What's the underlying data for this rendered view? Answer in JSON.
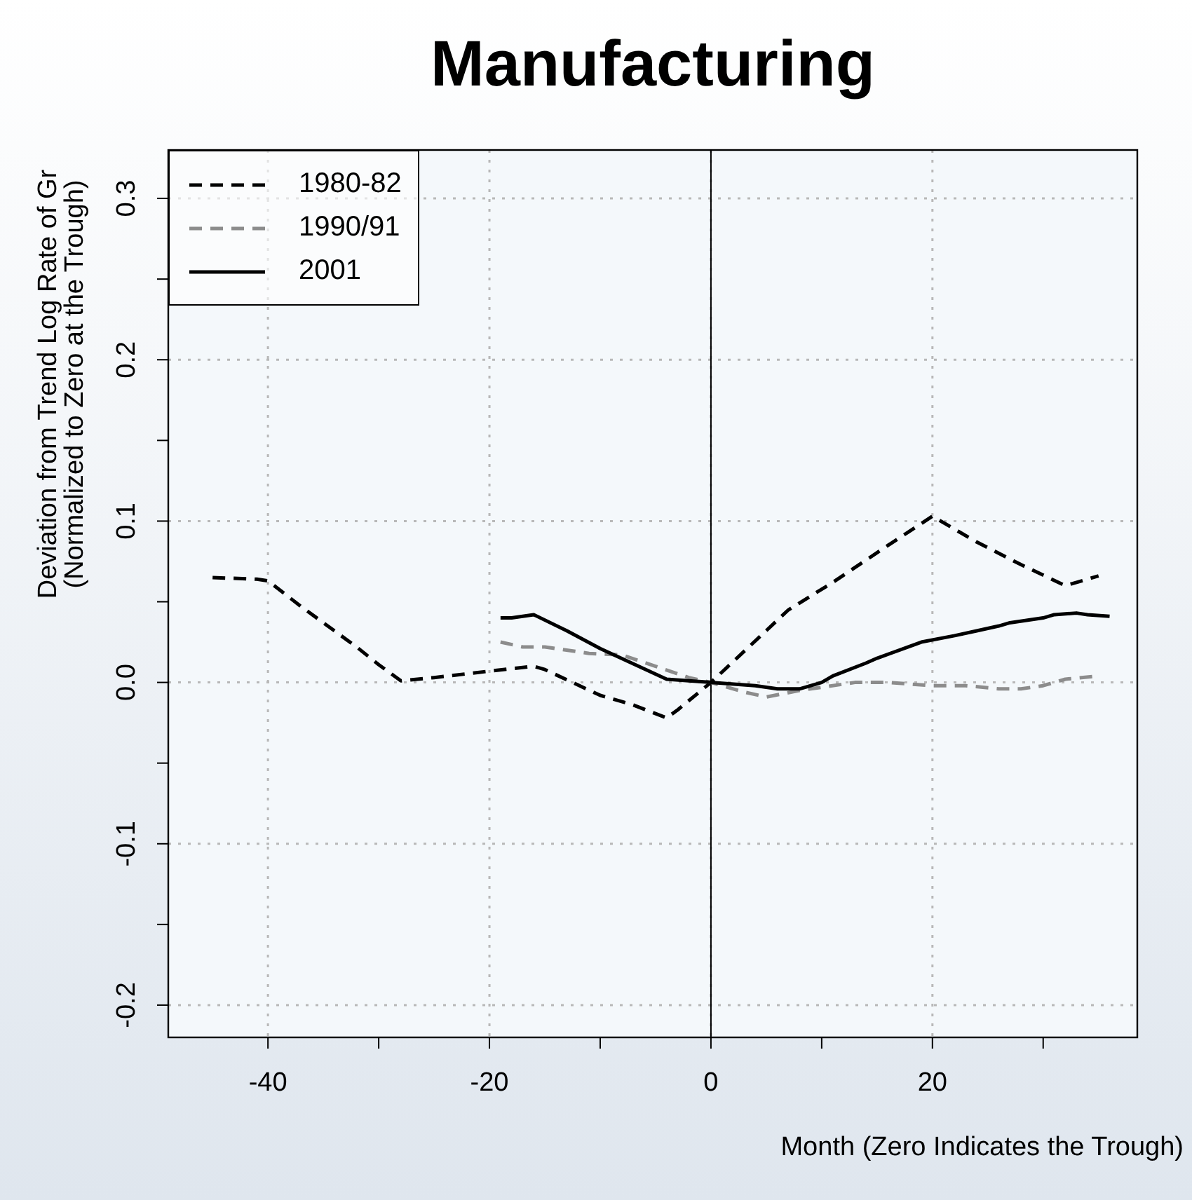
{
  "chart_data": {
    "type": "line",
    "title": "Manufacturing",
    "xlabel": "Month (Zero Indicates the Trough)",
    "ylabel": "Deviation from Trend Log Rate of Gr\n(Normalized to Zero at the Trough)",
    "xlim": [
      -49,
      38.5
    ],
    "ylim": [
      -0.22,
      0.33
    ],
    "xticks": [
      -40,
      {
        "value": -30,
        "label": null
      },
      -20,
      {
        "value": -10,
        "label": null
      },
      0,
      {
        "value": 10,
        "label": null
      },
      20,
      {
        "value": 30,
        "label": null
      }
    ],
    "yticks": [
      {
        "value": -0.2,
        "label": "-0.2"
      },
      {
        "value": -0.15,
        "label": null
      },
      {
        "value": -0.1,
        "label": "-0.1"
      },
      {
        "value": -0.05,
        "label": null
      },
      {
        "value": 0,
        "label": "0.0"
      },
      {
        "value": 0.05,
        "label": null
      },
      {
        "value": 0.1,
        "label": "0.1"
      },
      {
        "value": 0.15,
        "label": null
      },
      {
        "value": 0.2,
        "label": "0.2"
      },
      {
        "value": 0.25,
        "label": null
      },
      {
        "value": 0.3,
        "label": "0.3"
      }
    ],
    "grid": true,
    "legend": "top left",
    "ref_lines": [
      {
        "axis": "x",
        "value": 0,
        "color": "#000000",
        "line_style": "solid"
      }
    ],
    "series": [
      {
        "name": "1980-82",
        "color": "#000000",
        "line_style": "dashed",
        "x": [
          -45,
          -41,
          -40,
          -37,
          -32,
          -30,
          -28,
          -25,
          -20,
          -16,
          -15,
          -10,
          -7,
          -4,
          -3,
          0,
          7,
          11,
          16,
          20,
          24,
          28,
          32,
          35
        ],
        "values": [
          0.065,
          0.064,
          0.063,
          0.047,
          0.022,
          0.011,
          0.001,
          0.003,
          0.007,
          0.01,
          0.008,
          -0.008,
          -0.014,
          -0.022,
          -0.017,
          0,
          0.045,
          0.062,
          0.085,
          0.103,
          0.087,
          0.073,
          0.06,
          0.066
        ]
      },
      {
        "name": "1990/91",
        "color": "#8c8c8c",
        "line_style": "dashed",
        "x": [
          -19,
          -17,
          -15,
          -11,
          -8,
          -5,
          -2,
          0,
          3,
          5,
          8,
          10,
          13,
          16,
          20,
          23,
          26,
          28,
          30,
          32,
          35
        ],
        "values": [
          0.025,
          0.022,
          0.022,
          0.018,
          0.017,
          0.01,
          0.003,
          0,
          -0.006,
          -0.009,
          -0.005,
          -0.003,
          0,
          0,
          -0.002,
          -0.002,
          -0.004,
          -0.004,
          -0.002,
          0.002,
          0.004
        ]
      },
      {
        "name": "2001",
        "color": "#000000",
        "line_style": "solid",
        "x": [
          -19,
          -18,
          -16,
          -13,
          -10,
          -4,
          -2,
          0,
          4,
          6,
          8,
          10,
          11,
          14,
          15,
          19,
          22,
          24,
          26,
          27,
          30,
          31,
          33,
          34,
          36
        ],
        "values": [
          0.04,
          0.04,
          0.042,
          0.032,
          0.021,
          0.002,
          0.001,
          0,
          -0.002,
          -0.004,
          -0.004,
          0,
          0.004,
          0.012,
          0.015,
          0.025,
          0.029,
          0.032,
          0.035,
          0.037,
          0.04,
          0.042,
          0.043,
          0.042,
          0.041
        ]
      }
    ]
  }
}
